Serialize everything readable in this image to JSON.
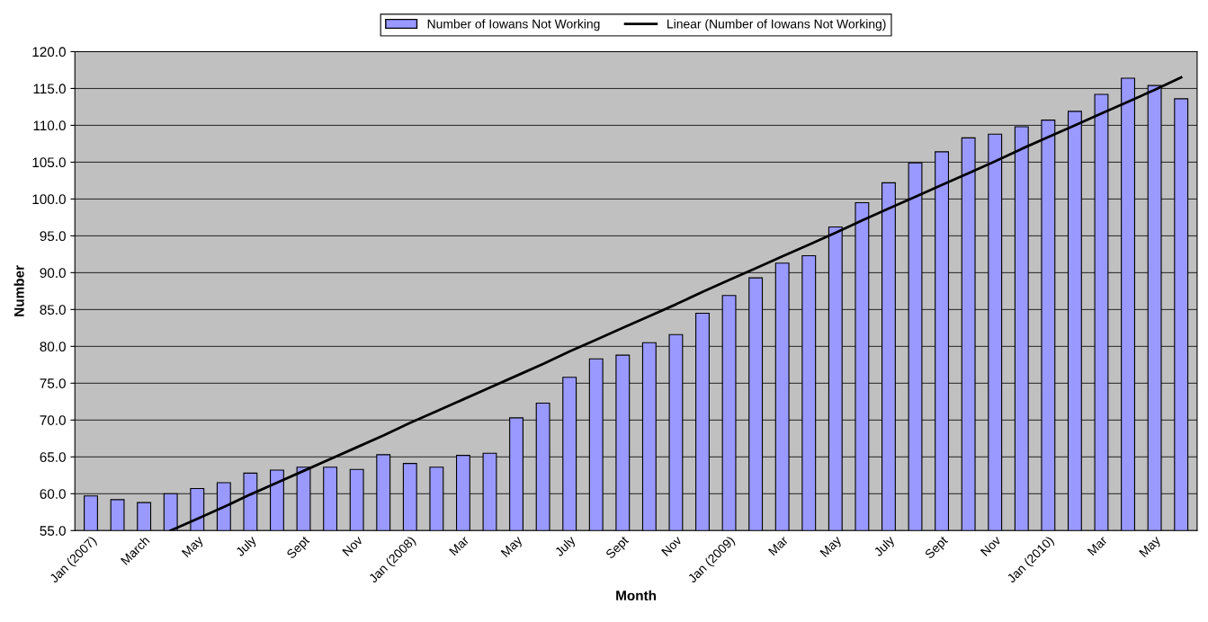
{
  "chart_data": {
    "type": "bar",
    "xlabel": "Month",
    "ylabel": "Number",
    "categories": [
      "Jan (2007)",
      null,
      "March",
      null,
      "May",
      null,
      "July",
      null,
      "Sept",
      null,
      "Nov",
      null,
      "Jan (2008)",
      null,
      "Mar",
      null,
      "May",
      null,
      "July",
      null,
      "Sept",
      null,
      "Nov",
      null,
      "Jan (2009)",
      null,
      "Mar",
      null,
      "May",
      null,
      "July",
      null,
      "Sept",
      null,
      "Nov",
      null,
      "Jan (2010)",
      null,
      "Mar",
      null,
      "May",
      null
    ],
    "series": [
      {
        "name": "Number of Iowans Not Working",
        "color": "#9999ff",
        "values": [
          59.7,
          59.2,
          58.8,
          60.0,
          60.7,
          61.5,
          62.8,
          63.2,
          63.6,
          63.6,
          63.3,
          65.3,
          64.1,
          63.6,
          65.2,
          65.5,
          70.3,
          72.3,
          75.8,
          78.3,
          78.8,
          80.5,
          81.6,
          84.5,
          86.9,
          89.3,
          91.3,
          92.3,
          96.2,
          99.5,
          102.2,
          104.9,
          106.4,
          108.3,
          108.8,
          109.8,
          110.7,
          111.9,
          114.2,
          116.4,
          115.4,
          113.6
        ]
      },
      {
        "name": "Linear (Number of Iowans Not Working)",
        "type": "line",
        "color": "#000000",
        "values": [
          null,
          null,
          null,
          55.0,
          56.6,
          58.2,
          59.9,
          61.5,
          63.1,
          64.7,
          66.3,
          67.9,
          69.6,
          71.2,
          72.8,
          74.4,
          76.0,
          77.6,
          79.3,
          80.9,
          82.5,
          84.1,
          85.7,
          87.4,
          89.0,
          90.6,
          92.2,
          93.8,
          95.4,
          97.1,
          98.7,
          100.3,
          101.9,
          103.5,
          105.1,
          106.8,
          108.4,
          110.0,
          111.6,
          113.2,
          114.8,
          116.5
        ]
      }
    ],
    "ylim": [
      55,
      120
    ],
    "yticks": [
      {
        "value": 55,
        "label": "55.0"
      },
      {
        "value": 60,
        "label": "60.0"
      },
      {
        "value": 65,
        "label": "65.0"
      },
      {
        "value": 70,
        "label": "70.0"
      },
      {
        "value": 75,
        "label": "75.0"
      },
      {
        "value": 80,
        "label": "80.0"
      },
      {
        "value": 85,
        "label": "85.0"
      },
      {
        "value": 90,
        "label": "90.0"
      },
      {
        "value": 95,
        "label": "95.0"
      },
      {
        "value": 100,
        "label": "100.0"
      },
      {
        "value": 105,
        "label": "105.0"
      },
      {
        "value": 110,
        "label": "110.0"
      },
      {
        "value": 115,
        "label": "115.0"
      },
      {
        "value": 120,
        "label": "120.0"
      }
    ],
    "grid": "y",
    "legend": "top",
    "marker": "none",
    "line_style": "solid"
  }
}
